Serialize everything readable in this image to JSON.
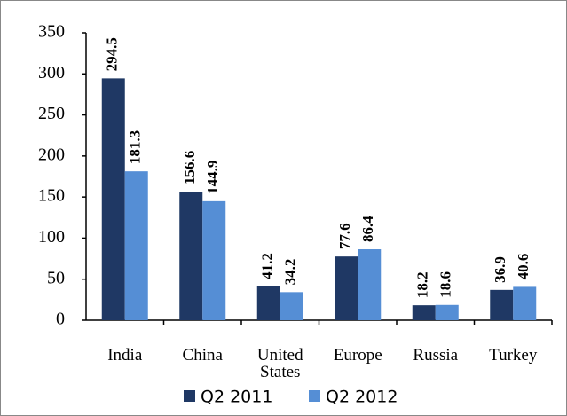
{
  "chart_data": {
    "type": "bar",
    "categories": [
      "India",
      "China",
      "United States",
      "Europe",
      "Russia",
      "Turkey"
    ],
    "series": [
      {
        "name": "Q2 2011",
        "color": "#1f3864",
        "values": [
          294.5,
          156.6,
          41.2,
          77.6,
          18.2,
          36.9
        ]
      },
      {
        "name": "Q2 2012",
        "color": "#558ed5",
        "values": [
          181.3,
          144.9,
          34.2,
          86.4,
          18.6,
          40.6
        ]
      }
    ],
    "ylim": [
      0,
      350
    ],
    "yticks": [
      0,
      50,
      100,
      150,
      200,
      250,
      300,
      350
    ],
    "value_labels": true,
    "legend": "bottom"
  }
}
